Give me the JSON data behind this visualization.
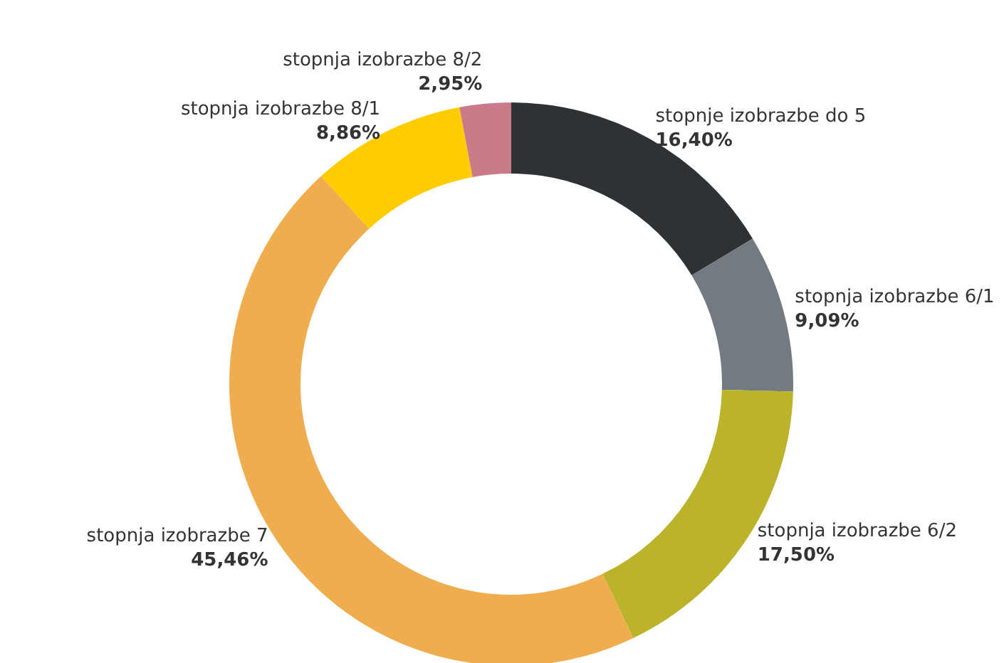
{
  "chart_data": {
    "type": "donut",
    "categories": [
      "stopnje izobrazbe do 5",
      "stopnja izobrazbe 6/1",
      "stopnja izobrazbe 6/2",
      "stopnja izobrazbe 7",
      "stopnja izobrazbe 8/1",
      "stopnja izobrazbe 8/2"
    ],
    "values": [
      16.4,
      9.09,
      17.5,
      45.46,
      8.86,
      2.95
    ],
    "value_labels": [
      "16,40%",
      "9,09%",
      "17,50%",
      "45,46%",
      "8,86%",
      "2,95%"
    ],
    "colors": [
      "#2e3235",
      "#737b80",
      "#bbb42a",
      "#f0ad4e",
      "#ffcc00",
      "#c97b8a"
    ],
    "legend": false
  }
}
